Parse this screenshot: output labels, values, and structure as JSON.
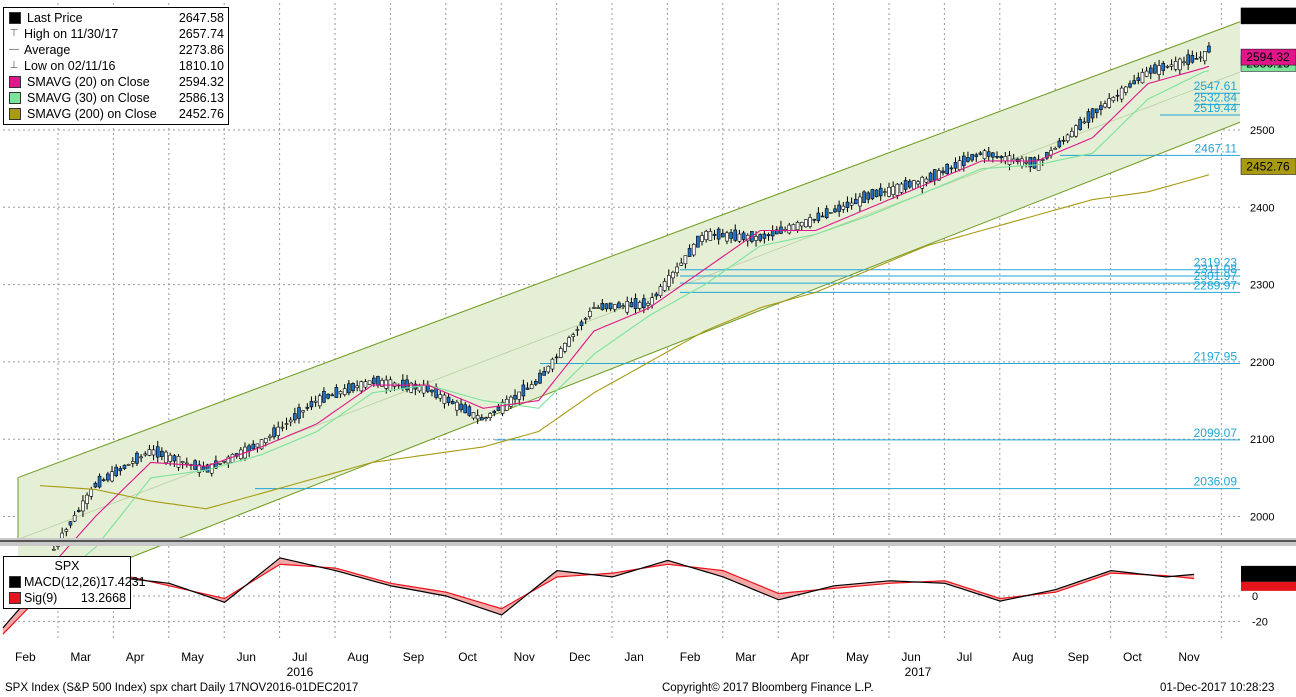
{
  "legend": {
    "items": [
      {
        "name": "Last Price",
        "value": "2647.58",
        "color": "#000000",
        "icon": "black-square"
      },
      {
        "name": "High on 11/30/17",
        "value": "2657.74",
        "color": "#777777",
        "icon": "high-marker"
      },
      {
        "name": "Average",
        "value": "2273.86",
        "color": "#777777",
        "icon": "average-line"
      },
      {
        "name": "Low on 02/11/16",
        "value": "1810.10",
        "color": "#777777",
        "icon": "low-marker"
      },
      {
        "name": "SMAVG (20) on Close",
        "value": "2594.32",
        "color": "#e0168a",
        "icon": "magenta-square"
      },
      {
        "name": "SMAVG (30) on Close",
        "value": "2586.13",
        "color": "#7be39a",
        "icon": "lightgreen-square"
      },
      {
        "name": "SMAVG (200) on Close",
        "value": "2452.76",
        "color": "#a89a12",
        "icon": "olive-square"
      }
    ]
  },
  "macd_legend": {
    "title": "SPX",
    "items": [
      {
        "name": "MACD(12,26)",
        "value": "17.4231",
        "color": "#000000"
      },
      {
        "name": "Sig(9)",
        "value": "13.2668",
        "color": "#e8141c"
      }
    ]
  },
  "price_tags": {
    "last": "2647.58",
    "sma20": "2594.32",
    "sma30": "2586.13",
    "sma200": "2452.76",
    "macd": "17.4231"
  },
  "fib_labels": [
    "2547.61",
    "2532.84",
    "2519.44",
    "2467.11",
    "2319.23",
    "2311.08",
    "2301.97",
    "2289.97",
    "2197.95",
    "2099.07",
    "2036.09"
  ],
  "footer": {
    "left": "SPX Index (S&P 500 Index) spx chart  Daily 17NOV2016-01DEC2017",
    "center": "Copyright© 2017 Bloomberg Finance L.P.",
    "right": "01-Dec-2017 10:28:23"
  },
  "colors": {
    "channel_fill": "#e4efd5",
    "channel_line": "#6f9a22",
    "sma20": "#e0168a",
    "sma30": "#7be39a",
    "sma200": "#a89a12",
    "fib": "#22a6d6",
    "macd": "#000000",
    "signal": "#e8141c"
  },
  "chart_data": [
    {
      "type": "line",
      "title": "SPX Index (S&P 500 Index) Daily",
      "x_ticks": [
        "Feb",
        "Mar",
        "Apr",
        "May",
        "Jun",
        "Jul",
        "Aug",
        "Sep",
        "Oct",
        "Nov",
        "Dec",
        "Jan",
        "Feb",
        "Mar",
        "Apr",
        "May",
        "Jun",
        "Jul",
        "Aug",
        "Sep",
        "Oct",
        "Nov"
      ],
      "year_labels": [
        "2016",
        "2017"
      ],
      "y_ticks": [
        2000,
        2100,
        2200,
        2300,
        2400,
        2500
      ],
      "ylim": [
        1970,
        2680
      ],
      "grid": true,
      "legend_position": "top-left",
      "x": [
        0,
        1,
        2,
        3,
        4,
        5,
        6,
        7,
        8,
        9,
        10,
        11,
        12,
        13,
        14,
        15,
        16,
        17,
        18,
        19,
        20,
        21,
        21.6
      ],
      "series": [
        {
          "name": "Last Price",
          "values": [
            1930,
            2040,
            2085,
            2060,
            2095,
            2150,
            2175,
            2165,
            2125,
            2175,
            2270,
            2275,
            2365,
            2360,
            2385,
            2415,
            2435,
            2470,
            2455,
            2520,
            2575,
            2595,
            2647.58
          ]
        },
        {
          "name": "SMAVG (20) on Close",
          "values": [
            1920,
            2000,
            2070,
            2065,
            2090,
            2120,
            2170,
            2170,
            2140,
            2150,
            2240,
            2270,
            2320,
            2370,
            2370,
            2400,
            2430,
            2460,
            2460,
            2490,
            2560,
            2580,
            2594.32
          ]
        },
        {
          "name": "SMAVG (30) on Close",
          "values": [
            1900,
            1960,
            2050,
            2060,
            2080,
            2110,
            2160,
            2170,
            2150,
            2140,
            2210,
            2260,
            2300,
            2350,
            2365,
            2390,
            2420,
            2450,
            2455,
            2470,
            2540,
            2575,
            2586.13
          ]
        },
        {
          "name": "SMAVG (200) on Close",
          "values": [
            2040,
            2035,
            2020,
            2010,
            2030,
            2050,
            2070,
            2080,
            2090,
            2110,
            2160,
            2200,
            2240,
            2270,
            2290,
            2320,
            2350,
            2370,
            2390,
            2410,
            2420,
            2440,
            2452.76
          ]
        }
      ],
      "horizontal_levels": [
        2547.61,
        2532.84,
        2519.44,
        2467.11,
        2319.23,
        2311.08,
        2301.97,
        2289.97,
        2197.95,
        2099.07,
        2036.09
      ]
    },
    {
      "type": "area",
      "title": "SPX MACD",
      "y_ticks": [
        0,
        -20
      ],
      "ylim": [
        -35,
        38
      ],
      "x": [
        0,
        1,
        2,
        3,
        4,
        5,
        6,
        7,
        8,
        9,
        10,
        11,
        12,
        13,
        14,
        15,
        16,
        17,
        18,
        19,
        20,
        21,
        21.6
      ],
      "series": [
        {
          "name": "MACD(12,26)",
          "values": [
            -25,
            25,
            15,
            10,
            -5,
            30,
            20,
            8,
            0,
            -15,
            20,
            15,
            28,
            15,
            -3,
            8,
            12,
            10,
            -4,
            5,
            20,
            15,
            17.4231
          ]
        },
        {
          "name": "Sig(9)",
          "values": [
            -30,
            15,
            18,
            8,
            -2,
            25,
            22,
            10,
            3,
            -10,
            15,
            18,
            25,
            20,
            2,
            6,
            10,
            12,
            -2,
            3,
            18,
            16,
            13.2668
          ]
        }
      ]
    }
  ]
}
